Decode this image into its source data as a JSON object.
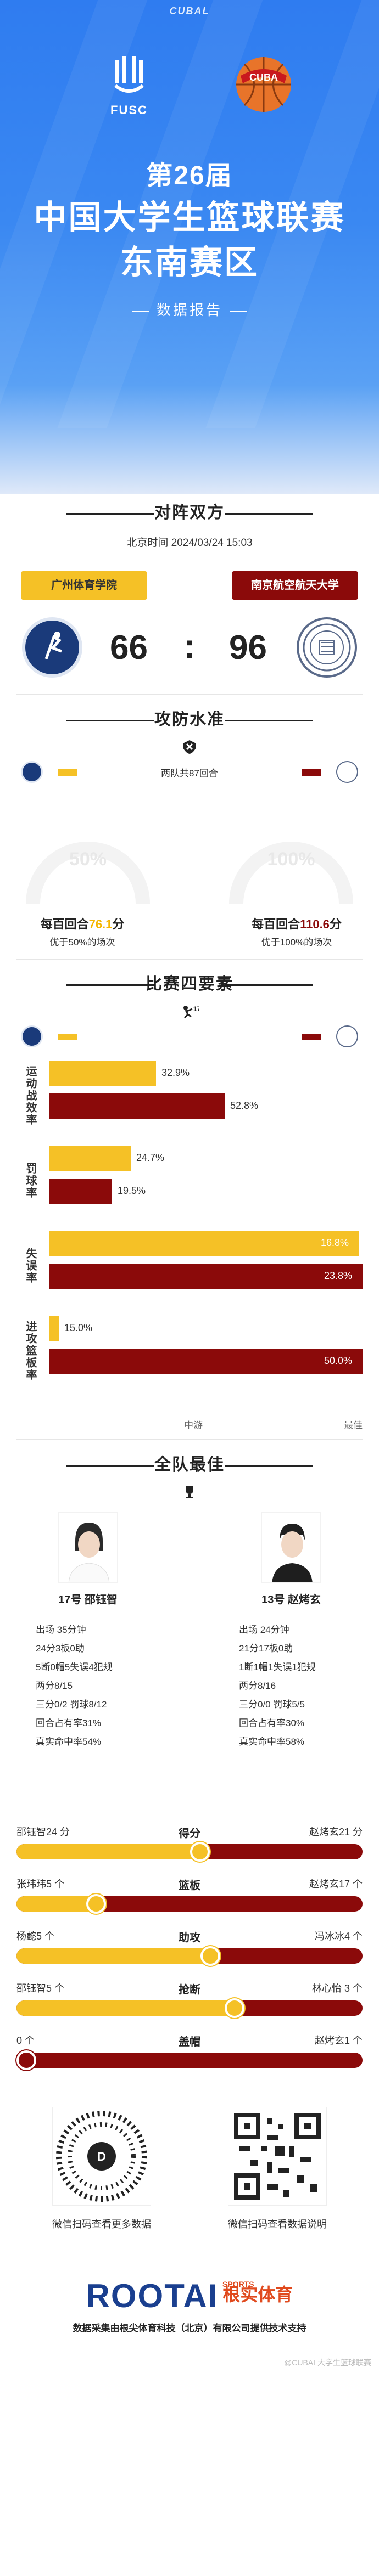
{
  "header": {
    "brand": "CUBAL",
    "left_logo_label": "FUSC",
    "line1": "第26届",
    "line2": "中国大学生篮球联赛",
    "line3": "东南赛区",
    "subtitle": "数据报告"
  },
  "matchup": {
    "title": "对阵双方",
    "time": "北京时间 2024/03/24 15:03",
    "team_a": "广州体育学院",
    "team_b": "南京航空航天大学",
    "score_a": "66",
    "score_colon": ":",
    "score_b": "96"
  },
  "offense": {
    "title": "攻防水准",
    "both_text": "两队共87回合",
    "gauge_a": "50%",
    "gauge_b": "100%",
    "per_a_prefix": "每百回合",
    "per_a_value": "76.1",
    "per_a_suffix": "分",
    "per_a_note": "优于50%的场次",
    "per_b_prefix": "每百回合",
    "per_b_value": "110.6",
    "per_b_suffix": "分",
    "per_b_note": "优于100%的场次"
  },
  "four_factors": {
    "title": "比赛四要素",
    "rows": [
      {
        "label": "运动战效率",
        "a": "32.9%",
        "b": "52.8%",
        "a_frac": 0.34,
        "b_frac": 0.56
      },
      {
        "label": "罚球率",
        "a": "24.7%",
        "b": "19.5%",
        "a_frac": 0.26,
        "b_frac": 0.2
      },
      {
        "label": "失误率",
        "a": "16.8%",
        "b": "23.8%",
        "a_frac": 0.99,
        "b_frac": 1.0
      },
      {
        "label": "进攻篮板率",
        "a": "15.0%",
        "b": "50.0%",
        "a_frac": 0.03,
        "b_frac": 1.0
      }
    ],
    "axis_mid": "中游",
    "axis_right": "最佳"
  },
  "best": {
    "title": "全队最佳",
    "player_a": {
      "name": "17号 邵钰智",
      "stats": [
        "出场 35分钟",
        "24分3板0助",
        "5断0帽5失误4犯规",
        "两分8/15",
        "三分0/2 罚球8/12",
        "回合占有率31%",
        "真实命中率54%"
      ]
    },
    "player_b": {
      "name": "13号 赵烤玄",
      "stats": [
        "出场 24分钟",
        "21分17板0助",
        "1断1帽1失误1犯规",
        "两分8/16",
        "三分0/0 罚球5/5",
        "回合占有率30%",
        "真实命中率58%"
      ]
    },
    "compare": [
      {
        "left": "邵钰智24 分",
        "mid": "得分",
        "right": "赵烤玄21 分",
        "fraction": 0.53
      },
      {
        "left": "张玮玮5 个",
        "mid": "篮板",
        "right": "赵烤玄17 个",
        "fraction": 0.23
      },
      {
        "left": "杨懿5 个",
        "mid": "助攻",
        "right": "冯冰冰4 个",
        "fraction": 0.56
      },
      {
        "left": "邵钰智5 个",
        "mid": "抢断",
        "right": "林心怡 3 个",
        "fraction": 0.63
      },
      {
        "left": "0 个",
        "mid": "盖帽",
        "right": "赵烤玄1 个",
        "fraction": 0.0
      }
    ]
  },
  "footer": {
    "qr_a_caption": "微信扫码查看更多数据",
    "qr_b_caption": "微信扫码查看数据说明",
    "brand": "ROOTAI",
    "brand_sports": "SPORTS",
    "brand_cn": "根实体育",
    "support": "数据采集由根尖体育科技（北京）有限公司提供技术支持",
    "watermark": "@CUBAL大学生篮球联赛"
  },
  "colors": {
    "team_a": "#f5c126",
    "team_b": "#8b0a0a",
    "header_blue": "#2f7cf0"
  }
}
